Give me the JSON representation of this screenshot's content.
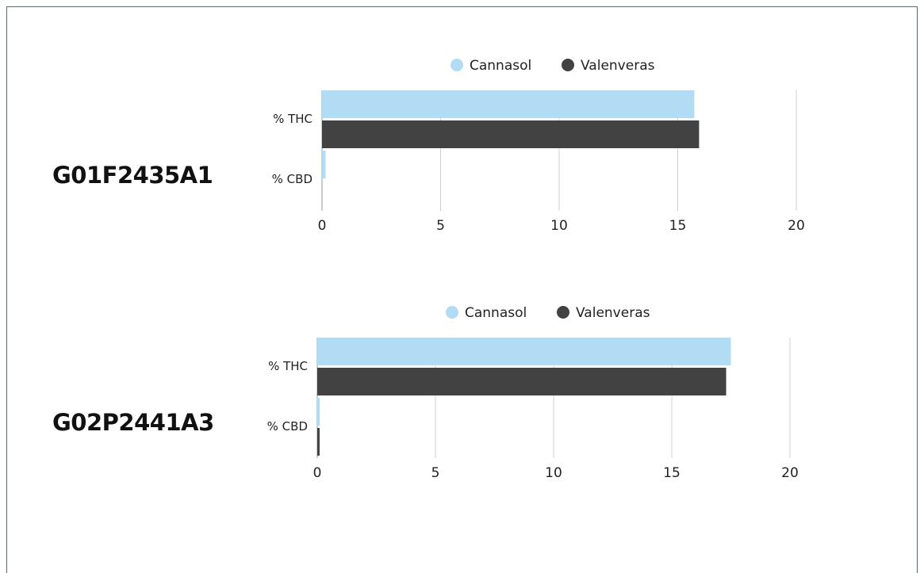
{
  "colors": {
    "cannasol": "#b1dcf4",
    "valenveras": "#424242",
    "grid": "#d0d0d0"
  },
  "chart_data": [
    {
      "type": "bar",
      "orientation": "horizontal",
      "title": "G01F2435A1",
      "categories": [
        "% THC",
        "% CBD"
      ],
      "series": [
        {
          "name": "Cannasol",
          "color": "#b1dcf4",
          "values": [
            15.7,
            0.15
          ]
        },
        {
          "name": "Valenveras",
          "color": "#424242",
          "values": [
            15.9,
            0
          ]
        }
      ],
      "xlim": [
        0,
        20
      ],
      "xticks": [
        0,
        5,
        10,
        15,
        20
      ],
      "legend": "top",
      "grid": true
    },
    {
      "type": "bar",
      "orientation": "horizontal",
      "title": "G02P2441A3",
      "categories": [
        "% THC",
        "% CBD"
      ],
      "series": [
        {
          "name": "Cannasol",
          "color": "#b1dcf4",
          "values": [
            17.5,
            0.1
          ]
        },
        {
          "name": "Valenveras",
          "color": "#424242",
          "values": [
            17.3,
            0.1
          ]
        }
      ],
      "xlim": [
        0,
        20
      ],
      "xticks": [
        0,
        5,
        10,
        15,
        20
      ],
      "legend": "top",
      "grid": true
    }
  ]
}
